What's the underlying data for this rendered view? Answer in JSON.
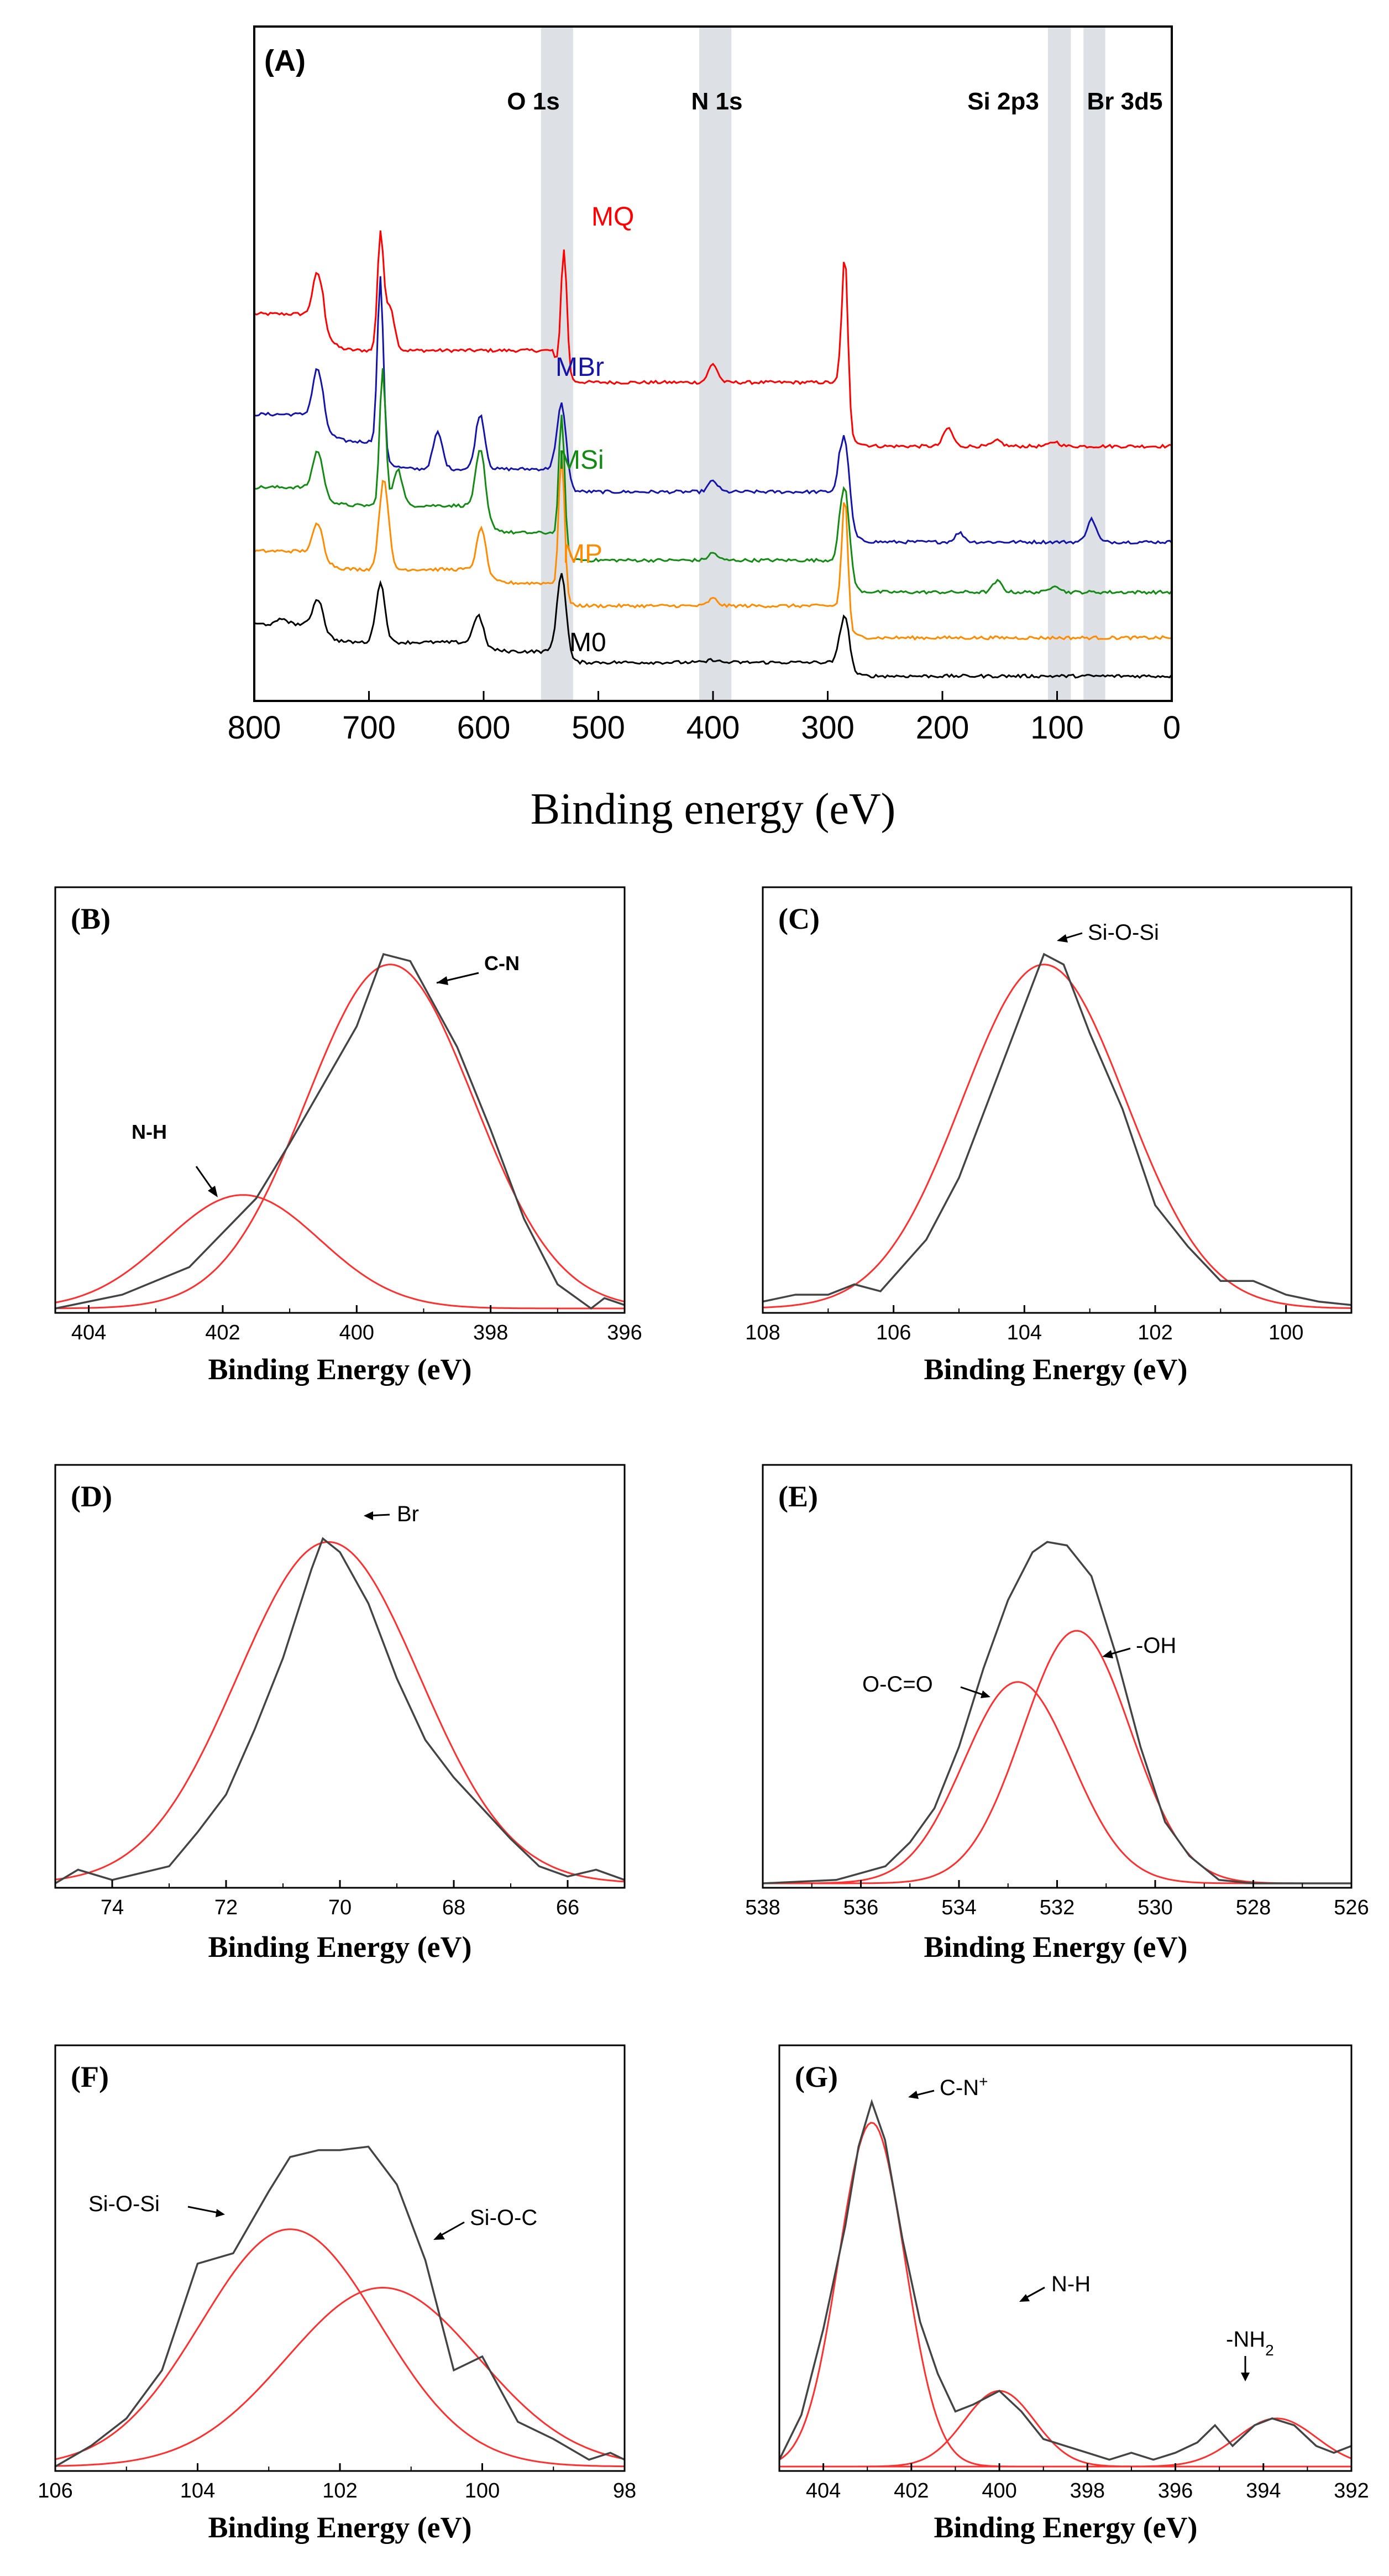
{
  "colors": {
    "axis": "#000000",
    "highlight_band": "#dde1e5",
    "MQ": "#ff0000",
    "MBr": "#1414a8",
    "MSi": "#138a13",
    "MP": "#ff8c00",
    "M0": "#000000",
    "raw": "#444444",
    "fit": "#ff3030"
  },
  "chart_data": [
    {
      "id": "A",
      "type": "line",
      "panel_label": "(A)",
      "xlabel": "Binding energy (eV)",
      "ylabel": "",
      "xlim": [
        800,
        0
      ],
      "x_ticks": [
        800,
        700,
        600,
        500,
        400,
        300,
        200,
        100,
        0
      ],
      "bands": [
        {
          "label": "O 1s",
          "range": [
            550,
            522
          ]
        },
        {
          "label": "N 1s",
          "range": [
            412,
            384
          ]
        },
        {
          "label": "Si 2p3",
          "range": [
            108,
            88
          ]
        },
        {
          "label": "Br 3d5",
          "range": [
            77,
            58
          ]
        }
      ],
      "series": [
        {
          "name": "MQ",
          "offset": 4.0,
          "tail": 0.0,
          "peaks": [
            [
              745,
              0.45
            ],
            [
              690,
              1.25
            ],
            [
              682,
              0.5
            ],
            [
              530,
              1.4
            ],
            [
              400,
              0.2
            ],
            [
              285,
              1.8
            ],
            [
              195,
              0.2
            ],
            [
              152,
              0.06
            ],
            [
              102,
              0.05
            ]
          ],
          "steps": [
            [
              740,
              -0.4
            ],
            [
              540,
              -0.35
            ],
            [
              290,
              -0.7
            ]
          ]
        },
        {
          "name": "MBr",
          "offset": 2.9,
          "tail": 0.0,
          "peaks": [
            [
              745,
              0.5
            ],
            [
              690,
              1.8
            ],
            [
              640,
              0.4
            ],
            [
              603,
              0.6
            ],
            [
              532,
              0.9
            ],
            [
              400,
              0.12
            ],
            [
              285,
              0.9
            ],
            [
              185,
              0.1
            ],
            [
              70,
              0.25
            ]
          ],
          "steps": [
            [
              740,
              -0.3
            ],
            [
              690,
              -0.3
            ],
            [
              540,
              -0.25
            ],
            [
              290,
              -0.55
            ]
          ]
        },
        {
          "name": "MSi",
          "offset": 2.1,
          "tail": 0.0,
          "peaks": [
            [
              745,
              0.4
            ],
            [
              688,
              1.5
            ],
            [
              675,
              0.4
            ],
            [
              603,
              0.6
            ],
            [
              532,
              1.5
            ],
            [
              400,
              0.08
            ],
            [
              285,
              1.0
            ],
            [
              152,
              0.12
            ],
            [
              102,
              0.08
            ]
          ],
          "steps": [
            [
              740,
              -0.2
            ],
            [
              600,
              -0.3
            ],
            [
              540,
              -0.3
            ],
            [
              290,
              -0.35
            ]
          ]
        },
        {
          "name": "MP",
          "offset": 1.4,
          "tail": 0.0,
          "peaks": [
            [
              745,
              0.3
            ],
            [
              687,
              1.0
            ],
            [
              602,
              0.45
            ],
            [
              532,
              1.6
            ],
            [
              400,
              0.08
            ],
            [
              285,
              1.4
            ]
          ],
          "steps": [
            [
              740,
              -0.2
            ],
            [
              600,
              -0.15
            ],
            [
              540,
              -0.25
            ],
            [
              290,
              -0.35
            ]
          ]
        },
        {
          "name": "M0",
          "offset": 0.6,
          "tail": 0.0,
          "peaks": [
            [
              775,
              0.06
            ],
            [
              745,
              0.28
            ],
            [
              690,
              0.65
            ],
            [
              605,
              0.3
            ],
            [
              532,
              0.95
            ],
            [
              400,
              0.03
            ],
            [
              285,
              0.6
            ]
          ],
          "steps": [
            [
              740,
              -0.2
            ],
            [
              600,
              -0.1
            ],
            [
              540,
              -0.12
            ],
            [
              290,
              -0.15
            ]
          ]
        }
      ],
      "series_labels": [
        "MQ",
        "MBr",
        "MSi",
        "MP",
        "M0"
      ]
    },
    {
      "id": "B",
      "type": "line",
      "panel_label": "(B)",
      "xlabel": "Binding Energy (eV)",
      "xlim": [
        404.5,
        396
      ],
      "ylim": [
        0,
        1.1
      ],
      "x_ticks": [
        404,
        402,
        400,
        398,
        396
      ],
      "fits": [
        {
          "center": 399.5,
          "height": 1.0,
          "sigma": 1.25
        },
        {
          "center": 401.7,
          "height": 0.33,
          "sigma": 1.15
        }
      ],
      "annotations": [
        "C-N",
        "N-H"
      ],
      "observed": [
        [
          404.5,
          0.0
        ],
        [
          403.5,
          0.04
        ],
        [
          402.5,
          0.12
        ],
        [
          402.0,
          0.22
        ],
        [
          401.5,
          0.32
        ],
        [
          401.0,
          0.48
        ],
        [
          400.5,
          0.65
        ],
        [
          400.0,
          0.82
        ],
        [
          399.6,
          1.03
        ],
        [
          399.2,
          1.01
        ],
        [
          398.5,
          0.76
        ],
        [
          398.0,
          0.52
        ],
        [
          397.5,
          0.26
        ],
        [
          397.0,
          0.07
        ],
        [
          396.5,
          0.0
        ],
        [
          396.3,
          0.03
        ],
        [
          396.0,
          0.01
        ]
      ]
    },
    {
      "id": "C",
      "type": "line",
      "panel_label": "(C)",
      "xlabel": "Binding Energy (eV)",
      "xlim": [
        108,
        99
      ],
      "ylim": [
        0,
        1.1
      ],
      "x_ticks": [
        108,
        106,
        104,
        102,
        100
      ],
      "fits": [
        {
          "center": 103.7,
          "height": 1.0,
          "sigma": 1.25
        }
      ],
      "annotations": [
        "Si-O-Si"
      ],
      "observed": [
        [
          108,
          0.02
        ],
        [
          107.5,
          0.04
        ],
        [
          107.0,
          0.04
        ],
        [
          106.6,
          0.07
        ],
        [
          106.2,
          0.05
        ],
        [
          105.5,
          0.2
        ],
        [
          105.0,
          0.38
        ],
        [
          104.5,
          0.63
        ],
        [
          104.0,
          0.88
        ],
        [
          103.7,
          1.03
        ],
        [
          103.4,
          1.0
        ],
        [
          103.0,
          0.8
        ],
        [
          102.5,
          0.58
        ],
        [
          102.0,
          0.3
        ],
        [
          101.5,
          0.18
        ],
        [
          101.0,
          0.08
        ],
        [
          100.5,
          0.08
        ],
        [
          100.0,
          0.04
        ],
        [
          99.5,
          0.02
        ],
        [
          99.0,
          0.01
        ]
      ]
    },
    {
      "id": "D",
      "type": "line",
      "panel_label": "(D)",
      "xlabel": "Binding Energy (eV)",
      "xlim": [
        75,
        65
      ],
      "ylim": [
        0,
        1.1
      ],
      "x_ticks": [
        74,
        72,
        70,
        68,
        66
      ],
      "fits": [
        {
          "center": 70.2,
          "height": 1.0,
          "sigma": 1.6
        }
      ],
      "annotations": [
        "Br"
      ],
      "observed": [
        [
          75.0,
          0.0
        ],
        [
          74.6,
          0.04
        ],
        [
          74.0,
          0.01
        ],
        [
          73.0,
          0.05
        ],
        [
          72.5,
          0.15
        ],
        [
          72.0,
          0.26
        ],
        [
          71.5,
          0.45
        ],
        [
          71.0,
          0.66
        ],
        [
          70.5,
          0.92
        ],
        [
          70.3,
          1.01
        ],
        [
          70.0,
          0.97
        ],
        [
          69.5,
          0.82
        ],
        [
          69.0,
          0.6
        ],
        [
          68.5,
          0.42
        ],
        [
          68.0,
          0.31
        ],
        [
          67.5,
          0.22
        ],
        [
          67.0,
          0.13
        ],
        [
          66.5,
          0.05
        ],
        [
          66.0,
          0.02
        ],
        [
          65.5,
          0.04
        ],
        [
          65.0,
          0.01
        ]
      ]
    },
    {
      "id": "E",
      "type": "line",
      "panel_label": "(E)",
      "xlabel": "Binding Energy (eV)",
      "xlim": [
        538,
        526
      ],
      "ylim": [
        0,
        1.1
      ],
      "x_ticks": [
        538,
        536,
        534,
        532,
        530,
        528,
        526
      ],
      "fits": [
        {
          "center": 531.6,
          "height": 0.74,
          "sigma": 1.1
        },
        {
          "center": 532.8,
          "height": 0.59,
          "sigma": 1.1
        }
      ],
      "annotations": [
        "-OH",
        "O-C=O"
      ],
      "observed": [
        [
          538,
          0.0
        ],
        [
          536.5,
          0.01
        ],
        [
          535.5,
          0.05
        ],
        [
          535.0,
          0.12
        ],
        [
          534.5,
          0.22
        ],
        [
          534.0,
          0.4
        ],
        [
          533.5,
          0.63
        ],
        [
          533.0,
          0.83
        ],
        [
          532.5,
          0.97
        ],
        [
          532.2,
          1.0
        ],
        [
          531.8,
          0.99
        ],
        [
          531.3,
          0.9
        ],
        [
          530.8,
          0.67
        ],
        [
          530.3,
          0.4
        ],
        [
          529.8,
          0.18
        ],
        [
          529.3,
          0.08
        ],
        [
          528.7,
          0.01
        ],
        [
          528.0,
          0.0
        ],
        [
          526.0,
          0.0
        ]
      ]
    },
    {
      "id": "F",
      "type": "line",
      "panel_label": "(F)",
      "xlabel": "Binding Energy (eV)",
      "xlim": [
        106,
        98
      ],
      "ylim": [
        0,
        1.1
      ],
      "x_ticks": [
        106,
        104,
        102,
        100,
        98
      ],
      "fits": [
        {
          "center": 102.7,
          "height": 0.69,
          "sigma": 1.25
        },
        {
          "center": 101.4,
          "height": 0.52,
          "sigma": 1.35
        }
      ],
      "annotations": [
        "Si-O-Si",
        "Si-O-C"
      ],
      "observed": [
        [
          106,
          0.0
        ],
        [
          105.5,
          0.06
        ],
        [
          105.0,
          0.14
        ],
        [
          104.5,
          0.28
        ],
        [
          104.0,
          0.59
        ],
        [
          103.5,
          0.62
        ],
        [
          103.0,
          0.8
        ],
        [
          102.7,
          0.9
        ],
        [
          102.3,
          0.92
        ],
        [
          102.0,
          0.92
        ],
        [
          101.6,
          0.93
        ],
        [
          101.2,
          0.82
        ],
        [
          100.8,
          0.6
        ],
        [
          100.4,
          0.28
        ],
        [
          100.0,
          0.32
        ],
        [
          99.5,
          0.13
        ],
        [
          99.0,
          0.08
        ],
        [
          98.5,
          0.02
        ],
        [
          98.2,
          0.04
        ],
        [
          98.0,
          0.02
        ]
      ]
    },
    {
      "id": "G",
      "type": "line",
      "panel_label": "(G)",
      "xlabel": "Binding Energy (eV)",
      "xlim": [
        405,
        392
      ],
      "ylim": [
        0,
        1.1
      ],
      "x_ticks": [
        404,
        402,
        400,
        398,
        396,
        394,
        392
      ],
      "fits": [
        {
          "center": 402.9,
          "height": 1.0,
          "sigma": 0.75
        },
        {
          "center": 400.0,
          "height": 0.22,
          "sigma": 0.8
        },
        {
          "center": 393.7,
          "height": 0.14,
          "sigma": 0.9
        }
      ],
      "annotations": [
        "C-N+",
        "N-H",
        "-NH2"
      ],
      "observed": [
        [
          405,
          0.02
        ],
        [
          404.5,
          0.15
        ],
        [
          404.0,
          0.4
        ],
        [
          403.5,
          0.7
        ],
        [
          403.2,
          0.93
        ],
        [
          402.9,
          1.06
        ],
        [
          402.6,
          0.95
        ],
        [
          402.2,
          0.66
        ],
        [
          401.8,
          0.42
        ],
        [
          401.4,
          0.27
        ],
        [
          401.0,
          0.16
        ],
        [
          400.6,
          0.18
        ],
        [
          400.0,
          0.22
        ],
        [
          399.5,
          0.16
        ],
        [
          399.0,
          0.08
        ],
        [
          398.5,
          0.06
        ],
        [
          398.0,
          0.04
        ],
        [
          397.5,
          0.02
        ],
        [
          397.0,
          0.04
        ],
        [
          396.5,
          0.02
        ],
        [
          396.0,
          0.04
        ],
        [
          395.5,
          0.07
        ],
        [
          395.1,
          0.12
        ],
        [
          394.7,
          0.06
        ],
        [
          394.2,
          0.12
        ],
        [
          393.8,
          0.14
        ],
        [
          393.3,
          0.12
        ],
        [
          392.8,
          0.06
        ],
        [
          392.4,
          0.04
        ],
        [
          392.0,
          0.06
        ]
      ]
    }
  ]
}
